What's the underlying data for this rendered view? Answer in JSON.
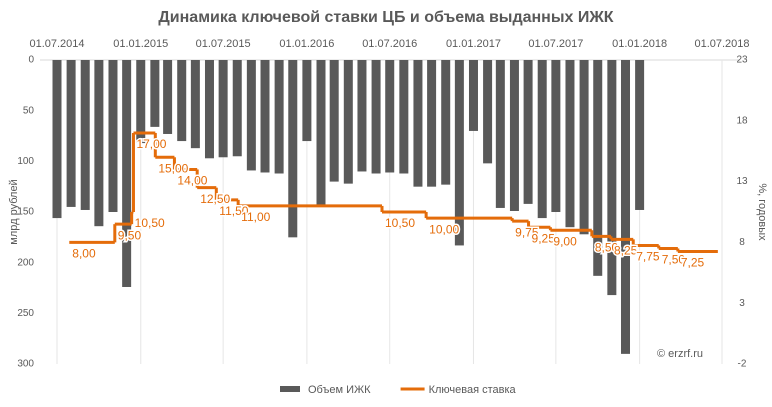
{
  "chart_data": {
    "type": "bar",
    "title": "Динамика ключевой ставки ЦБ и объема выданных ИЖК",
    "y_label": "млрд рублей",
    "y2_label": "%, годовых",
    "watermark": "© erzrf.ru",
    "xlim": [
      "01.07.2014",
      "01.07.2018"
    ],
    "xticks": [
      "01.07.2014",
      "01.01.2015",
      "01.07.2015",
      "01.01.2016",
      "01.07.2016",
      "01.01.2017",
      "01.07.2017",
      "01.01.2018",
      "01.07.2018"
    ],
    "ylim": [
      0,
      300
    ],
    "y_inverted": true,
    "yticks": [
      0,
      50,
      100,
      150,
      200,
      250,
      300
    ],
    "y2lim": [
      -2,
      23
    ],
    "y2ticks": [
      -2,
      3,
      8,
      13,
      18,
      23
    ],
    "grid": true,
    "legend": "bottom",
    "series": [
      {
        "name": "Объем ИЖК",
        "type": "bar",
        "color": "#595959",
        "x": [
          "01.07.2014",
          "01.08.2014",
          "01.09.2014",
          "01.10.2014",
          "01.11.2014",
          "01.12.2014",
          "01.01.2015",
          "01.02.2015",
          "01.03.2015",
          "01.04.2015",
          "01.05.2015",
          "01.06.2015",
          "01.07.2015",
          "01.08.2015",
          "01.09.2015",
          "01.10.2015",
          "01.11.2015",
          "01.12.2015",
          "01.01.2016",
          "01.02.2016",
          "01.03.2016",
          "01.04.2016",
          "01.05.2016",
          "01.06.2016",
          "01.07.2016",
          "01.08.2016",
          "01.09.2016",
          "01.10.2016",
          "01.11.2016",
          "01.12.2016",
          "01.01.2017",
          "01.02.2017",
          "01.03.2017",
          "01.04.2017",
          "01.05.2017",
          "01.06.2017",
          "01.07.2017",
          "01.08.2017",
          "01.09.2017",
          "01.10.2017",
          "01.11.2017",
          "01.12.2017",
          "01.01.2018"
        ],
        "values": [
          156,
          145,
          148,
          164,
          150,
          224,
          82,
          66,
          73,
          80,
          87,
          97,
          96,
          95,
          109,
          111,
          112,
          175,
          80,
          143,
          120,
          122,
          110,
          112,
          111,
          112,
          125,
          125,
          123,
          183,
          70,
          102,
          146,
          149,
          142,
          156,
          150,
          165,
          172,
          213,
          232,
          290,
          148
        ]
      },
      {
        "name": "Ключевая ставка",
        "type": "line",
        "axis": "y2",
        "color": "#e46c0a",
        "x": [
          "28.07.2014",
          "05.11.2014",
          "12.12.2014",
          "16.12.2014",
          "02.02.2015",
          "16.03.2015",
          "05.05.2015",
          "16.06.2015",
          "03.08.2015",
          "14.06.2016",
          "19.09.2016",
          "27.03.2017",
          "02.05.2017",
          "19.06.2017",
          "18.09.2017",
          "30.10.2017",
          "18.12.2017",
          "12.02.2018",
          "26.03.2018"
        ],
        "values": [
          8,
          9.5,
          10.5,
          17,
          15,
          14,
          12.5,
          11.5,
          11,
          10.5,
          10,
          9.75,
          9.25,
          9,
          8.5,
          8.25,
          7.75,
          7.5,
          7.25
        ],
        "value_labels": [
          "8,00",
          "9,50",
          "10,50",
          "17,00",
          "15,00",
          "14,00",
          "12,50",
          "11,50",
          "11,00",
          "10,50",
          "10,00",
          "9,75",
          "9,25",
          "9,00",
          "8,50",
          "8,25",
          "7,75",
          "7,50",
          "7,25"
        ]
      }
    ]
  }
}
